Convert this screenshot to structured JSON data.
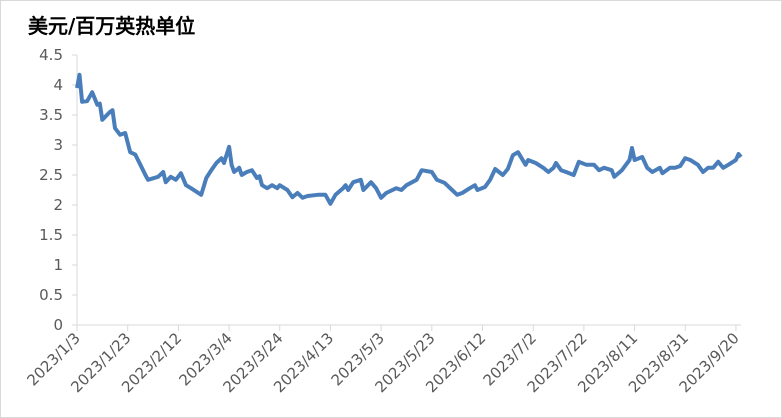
{
  "chart_data": {
    "type": "line",
    "title": "美元/百万英热单位",
    "x": [
      "2023/1/3",
      "2023/1/4",
      "2023/1/5",
      "2023/1/7",
      "2023/1/9",
      "2023/1/11",
      "2023/1/12",
      "2023/1/13",
      "2023/1/16",
      "2023/1/17",
      "2023/1/18",
      "2023/1/20",
      "2023/1/22",
      "2023/1/24",
      "2023/1/26",
      "2023/1/28",
      "2023/1/30",
      "2023/1/31",
      "2023/2/4",
      "2023/2/6",
      "2023/2/7",
      "2023/2/9",
      "2023/2/11",
      "2023/2/13",
      "2023/2/15",
      "2023/2/17",
      "2023/2/21",
      "2023/2/23",
      "2023/2/25",
      "2023/2/27",
      "2023/3/1",
      "2023/3/2",
      "2023/3/4",
      "2023/3/5",
      "2023/3/6",
      "2023/3/8",
      "2023/3/9",
      "2023/3/11",
      "2023/3/13",
      "2023/3/15",
      "2023/3/16",
      "2023/3/17",
      "2023/3/19",
      "2023/3/21",
      "2023/3/23",
      "2023/3/24",
      "2023/3/27",
      "2023/3/29",
      "2023/3/31",
      "2023/4/2",
      "2023/4/4",
      "2023/4/8",
      "2023/4/11",
      "2023/4/13",
      "2023/4/15",
      "2023/4/18",
      "2023/4/19",
      "2023/4/20",
      "2023/4/22",
      "2023/4/25",
      "2023/4/26",
      "2023/4/29",
      "2023/5/1",
      "2023/5/3",
      "2023/5/5",
      "2023/5/9",
      "2023/5/11",
      "2023/5/13",
      "2023/5/17",
      "2023/5/19",
      "2023/5/23",
      "2023/5/25",
      "2023/5/28",
      "2023/5/31",
      "2023/6/2",
      "2023/6/4",
      "2023/6/7",
      "2023/6/9",
      "2023/6/10",
      "2023/6/13",
      "2023/6/15",
      "2023/6/17",
      "2023/6/20",
      "2023/6/22",
      "2023/6/24",
      "2023/6/26",
      "2023/6/29",
      "2023/6/30",
      "2023/7/3",
      "2023/7/6",
      "2023/7/8",
      "2023/7/10",
      "2023/7/11",
      "2023/7/13",
      "2023/7/15",
      "2023/7/18",
      "2023/7/20",
      "2023/7/23",
      "2023/7/26",
      "2023/7/28",
      "2023/7/30",
      "2023/8/2",
      "2023/8/3",
      "2023/8/6",
      "2023/8/9",
      "2023/8/10",
      "2023/8/11",
      "2023/8/14",
      "2023/8/16",
      "2023/8/18",
      "2023/8/21",
      "2023/8/22",
      "2023/8/25",
      "2023/8/27",
      "2023/8/29",
      "2023/8/31",
      "2023/9/2",
      "2023/9/5",
      "2023/9/7",
      "2023/9/9",
      "2023/9/11",
      "2023/9/13",
      "2023/9/15",
      "2023/9/17",
      "2023/9/20",
      "2023/9/21",
      "2023/9/22"
    ],
    "series": [
      {
        "color": "#4a7ebb",
        "values": [
          3.95,
          4.17,
          3.72,
          3.73,
          3.88,
          3.67,
          3.69,
          3.42,
          3.55,
          3.58,
          3.28,
          3.17,
          3.2,
          2.88,
          2.84,
          2.67,
          2.5,
          2.42,
          2.47,
          2.55,
          2.38,
          2.47,
          2.42,
          2.53,
          2.33,
          2.28,
          2.17,
          2.45,
          2.58,
          2.7,
          2.78,
          2.7,
          2.97,
          2.67,
          2.55,
          2.62,
          2.5,
          2.55,
          2.58,
          2.45,
          2.48,
          2.33,
          2.28,
          2.33,
          2.28,
          2.33,
          2.25,
          2.13,
          2.2,
          2.12,
          2.15,
          2.17,
          2.17,
          2.02,
          2.17,
          2.28,
          2.33,
          2.25,
          2.38,
          2.42,
          2.25,
          2.38,
          2.28,
          2.12,
          2.2,
          2.28,
          2.25,
          2.33,
          2.42,
          2.58,
          2.55,
          2.42,
          2.37,
          2.25,
          2.17,
          2.2,
          2.28,
          2.33,
          2.25,
          2.3,
          2.42,
          2.6,
          2.5,
          2.6,
          2.83,
          2.88,
          2.67,
          2.75,
          2.7,
          2.62,
          2.55,
          2.62,
          2.7,
          2.58,
          2.55,
          2.5,
          2.72,
          2.67,
          2.67,
          2.58,
          2.62,
          2.58,
          2.47,
          2.58,
          2.75,
          2.95,
          2.75,
          2.8,
          2.62,
          2.55,
          2.62,
          2.53,
          2.62,
          2.62,
          2.65,
          2.78,
          2.75,
          2.67,
          2.55,
          2.62,
          2.62,
          2.72,
          2.62,
          2.67,
          2.75,
          2.85,
          2.8
        ]
      }
    ],
    "xlim": [
      "2023/1/3",
      "2023/9/22"
    ],
    "xticks": [
      "2023/1/3",
      "2023/1/23",
      "2023/2/12",
      "2023/3/4",
      "2023/3/24",
      "2023/4/13",
      "2023/5/3",
      "2023/5/23",
      "2023/6/12",
      "2023/7/2",
      "2023/7/22",
      "2023/8/11",
      "2023/8/31",
      "2023/9/20"
    ],
    "ylim": [
      0,
      4.5
    ],
    "yticks": [
      0,
      0.5,
      1,
      1.5,
      2,
      2.5,
      3,
      3.5,
      4,
      4.5
    ],
    "grid": false
  }
}
